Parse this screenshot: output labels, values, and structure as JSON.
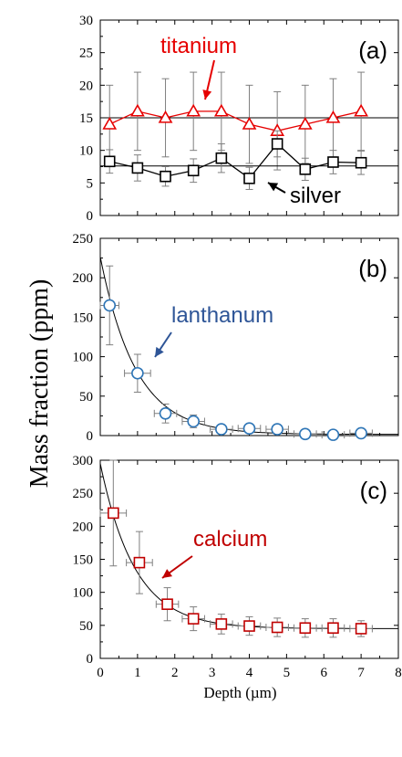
{
  "chart_data": {
    "type": "scatter",
    "shared_ylabel": "Mass fraction (ppm)",
    "panels": [
      {
        "panel_label": "(a)",
        "xlim": [
          0,
          8
        ],
        "ylim": [
          0,
          30
        ],
        "yticks": [
          0,
          5,
          10,
          15,
          20,
          25,
          30
        ],
        "xlabel": "",
        "show_x_tick_labels": false,
        "series": [
          {
            "name": "titanium",
            "color": "#e60000",
            "marker": "triangle",
            "connect": true,
            "x": [
              0.25,
              1.0,
              1.75,
              2.5,
              3.25,
              4.0,
              4.75,
              5.5,
              6.25,
              7.0
            ],
            "y": [
              14,
              16,
              15,
              16,
              16,
              14,
              13,
              14,
              15,
              16
            ],
            "yerr": [
              6,
              6,
              6,
              6,
              6,
              6,
              6,
              6,
              6,
              6
            ],
            "xerr": [
              0,
              0,
              0,
              0,
              0,
              0,
              0,
              0,
              0,
              0
            ],
            "mean_line": 15
          },
          {
            "name": "silver",
            "color": "#000000",
            "marker": "square",
            "connect": true,
            "x": [
              0.25,
              1.0,
              1.75,
              2.5,
              3.25,
              4.0,
              4.75,
              5.5,
              6.25,
              7.0
            ],
            "y": [
              8.3,
              7.3,
              6.0,
              6.9,
              8.8,
              5.7,
              11.0,
              7.1,
              8.2,
              8.1
            ],
            "yerr": [
              1.8,
              2.0,
              1.5,
              1.8,
              2.2,
              1.7,
              2.0,
              1.7,
              1.8,
              1.8
            ],
            "xerr": [
              0,
              0,
              0,
              0,
              0,
              0,
              0,
              0,
              0,
              0
            ],
            "mean_line": 7.6
          }
        ],
        "annotations": [
          {
            "text": "titanium",
            "color": "#e60000"
          },
          {
            "text": "silver",
            "color": "#000000"
          }
        ]
      },
      {
        "panel_label": "(b)",
        "xlim": [
          0,
          8
        ],
        "ylim": [
          0,
          250
        ],
        "yticks": [
          0,
          50,
          100,
          150,
          200,
          250
        ],
        "xlabel": "",
        "show_x_tick_labels": false,
        "series": [
          {
            "name": "lanthanum",
            "color": "#2e75b6",
            "marker": "circle",
            "connect": false,
            "x": [
              0.25,
              1.0,
              1.75,
              2.5,
              3.25,
              4.0,
              4.75,
              5.5,
              6.25,
              7.0
            ],
            "y": [
              165,
              79,
              28,
              18,
              8,
              9,
              8,
              2,
              1,
              3
            ],
            "yerr": [
              50,
              24,
              12,
              8,
              3,
              3,
              3,
              1,
              1,
              1
            ],
            "xerr": [
              0.25,
              0.35,
              0.3,
              0.3,
              0.3,
              0.3,
              0.3,
              0.3,
              0.3,
              0.3
            ]
          }
        ],
        "fit": {
          "a": 225,
          "b": 1.05,
          "c": 1.5
        },
        "annotations": [
          {
            "text": "lanthanum",
            "color": "#2e5597"
          }
        ]
      },
      {
        "panel_label": "(c)",
        "xlim": [
          0,
          8
        ],
        "ylim": [
          0,
          300
        ],
        "yticks": [
          0,
          50,
          100,
          150,
          200,
          250,
          300
        ],
        "xticks": [
          0,
          1,
          2,
          3,
          4,
          5,
          6,
          7,
          8
        ],
        "xlabel": "Depth (µm)",
        "show_x_tick_labels": true,
        "series": [
          {
            "name": "calcium",
            "color": "#c00000",
            "marker": "square",
            "connect": false,
            "x": [
              0.35,
              1.05,
              1.8,
              2.5,
              3.25,
              4.0,
              4.75,
              5.5,
              6.25,
              7.0
            ],
            "y": [
              220,
              145,
              82,
              60,
              52,
              49,
              47,
              46,
              46,
              45
            ],
            "yerr": [
              80,
              47,
              25,
              18,
              15,
              14,
              14,
              14,
              14,
              12
            ],
            "xerr": [
              0.35,
              0.35,
              0.3,
              0.3,
              0.3,
              0.3,
              0.3,
              0.3,
              0.3,
              0.3
            ]
          }
        ],
        "fit": {
          "a": 250,
          "b": 1.08,
          "c": 45
        },
        "annotations": [
          {
            "text": "calcium",
            "color": "#c00000"
          }
        ]
      }
    ]
  }
}
